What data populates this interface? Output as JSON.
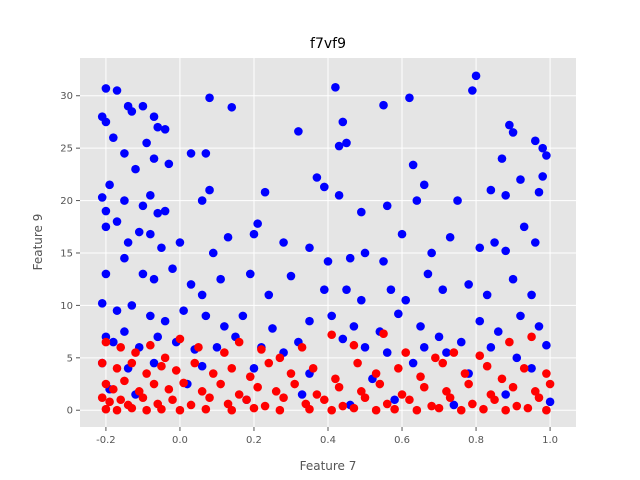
{
  "chart_data": {
    "type": "scatter",
    "title": "f7vf9",
    "xlabel": "Feature 7",
    "ylabel": "Feature 9",
    "xlim": [
      -0.27,
      1.07
    ],
    "ylim": [
      -1.6,
      33.6
    ],
    "x_ticks": [
      "-0.2",
      "0.0",
      "0.2",
      "0.4",
      "0.6",
      "0.8",
      "1.0"
    ],
    "y_ticks": [
      "0",
      "5",
      "10",
      "15",
      "20",
      "25",
      "30"
    ],
    "grid": true,
    "legend": "none",
    "colors": {
      "background": "#e5e5e5",
      "grid": "#ffffff",
      "blue_series": "#0000ff",
      "red_series": "#ff0000"
    },
    "series": [
      {
        "color": "#0000ff",
        "points": [
          [
            -0.2,
            30.7
          ],
          [
            -0.17,
            30.5
          ],
          [
            -0.21,
            28.0
          ],
          [
            -0.2,
            27.5
          ],
          [
            -0.18,
            26.0
          ],
          [
            -0.14,
            29.0
          ],
          [
            -0.13,
            28.5
          ],
          [
            -0.1,
            29.0
          ],
          [
            -0.07,
            28.0
          ],
          [
            -0.06,
            27.0
          ],
          [
            -0.04,
            26.8
          ],
          [
            0.08,
            29.8
          ],
          [
            0.14,
            28.9
          ],
          [
            0.42,
            30.8
          ],
          [
            0.55,
            29.1
          ],
          [
            0.62,
            29.8
          ],
          [
            0.79,
            30.5
          ],
          [
            0.8,
            31.9
          ],
          [
            0.89,
            27.2
          ],
          [
            0.9,
            26.5
          ],
          [
            -0.15,
            24.5
          ],
          [
            -0.12,
            23.0
          ],
          [
            -0.09,
            25.5
          ],
          [
            -0.07,
            24.0
          ],
          [
            -0.03,
            23.5
          ],
          [
            0.03,
            24.5
          ],
          [
            0.07,
            24.5
          ],
          [
            0.32,
            26.6
          ],
          [
            0.43,
            25.2
          ],
          [
            0.44,
            27.5
          ],
          [
            0.45,
            25.5
          ],
          [
            0.63,
            23.4
          ],
          [
            0.87,
            24.0
          ],
          [
            0.96,
            25.7
          ],
          [
            0.98,
            25.0
          ],
          [
            0.99,
            24.3
          ],
          [
            -0.21,
            20.3
          ],
          [
            -0.19,
            21.5
          ],
          [
            -0.2,
            19.0
          ],
          [
            -0.15,
            20.0
          ],
          [
            -0.1,
            19.5
          ],
          [
            -0.08,
            20.5
          ],
          [
            -0.06,
            18.8
          ],
          [
            -0.04,
            19.0
          ],
          [
            0.06,
            20.0
          ],
          [
            0.08,
            21.0
          ],
          [
            0.23,
            20.8
          ],
          [
            0.37,
            22.2
          ],
          [
            0.39,
            21.3
          ],
          [
            0.43,
            20.5
          ],
          [
            0.49,
            18.9
          ],
          [
            0.56,
            19.5
          ],
          [
            0.64,
            20.0
          ],
          [
            0.66,
            21.5
          ],
          [
            0.75,
            20.0
          ],
          [
            0.84,
            21.0
          ],
          [
            0.88,
            20.5
          ],
          [
            0.92,
            22.0
          ],
          [
            0.98,
            22.3
          ],
          [
            0.97,
            20.8
          ],
          [
            -0.2,
            17.5
          ],
          [
            -0.17,
            18.0
          ],
          [
            -0.14,
            16.0
          ],
          [
            -0.11,
            17.0
          ],
          [
            -0.08,
            16.8
          ],
          [
            -0.05,
            15.5
          ],
          [
            0.0,
            16.0
          ],
          [
            0.09,
            15.0
          ],
          [
            0.13,
            16.5
          ],
          [
            0.2,
            16.8
          ],
          [
            0.21,
            17.8
          ],
          [
            0.28,
            16.0
          ],
          [
            0.35,
            15.5
          ],
          [
            0.4,
            14.2
          ],
          [
            0.46,
            14.5
          ],
          [
            0.5,
            15.0
          ],
          [
            0.55,
            14.2
          ],
          [
            0.6,
            16.8
          ],
          [
            0.68,
            15.0
          ],
          [
            0.73,
            16.5
          ],
          [
            0.81,
            15.5
          ],
          [
            0.85,
            16.0
          ],
          [
            0.88,
            15.2
          ],
          [
            0.93,
            17.5
          ],
          [
            0.96,
            16.0
          ],
          [
            -0.2,
            13.0
          ],
          [
            -0.15,
            14.5
          ],
          [
            -0.1,
            13.0
          ],
          [
            -0.07,
            12.5
          ],
          [
            -0.02,
            13.5
          ],
          [
            0.03,
            12.0
          ],
          [
            0.06,
            11.0
          ],
          [
            0.11,
            12.5
          ],
          [
            0.19,
            13.0
          ],
          [
            0.24,
            11.0
          ],
          [
            0.3,
            12.8
          ],
          [
            0.39,
            11.5
          ],
          [
            0.45,
            11.5
          ],
          [
            0.49,
            10.5
          ],
          [
            0.57,
            11.5
          ],
          [
            0.61,
            10.5
          ],
          [
            0.67,
            13.0
          ],
          [
            0.71,
            11.5
          ],
          [
            0.78,
            12.0
          ],
          [
            0.83,
            11.0
          ],
          [
            0.9,
            12.5
          ],
          [
            0.95,
            11.0
          ],
          [
            -0.21,
            10.2
          ],
          [
            -0.17,
            9.5
          ],
          [
            -0.13,
            10.0
          ],
          [
            -0.08,
            9.0
          ],
          [
            -0.04,
            8.5
          ],
          [
            0.01,
            9.5
          ],
          [
            0.07,
            9.0
          ],
          [
            0.12,
            8.0
          ],
          [
            0.17,
            9.0
          ],
          [
            0.25,
            7.8
          ],
          [
            0.35,
            8.5
          ],
          [
            0.41,
            9.0
          ],
          [
            0.47,
            8.0
          ],
          [
            0.54,
            7.5
          ],
          [
            0.59,
            9.2
          ],
          [
            0.65,
            8.0
          ],
          [
            0.7,
            7.0
          ],
          [
            0.76,
            6.5
          ],
          [
            0.81,
            8.5
          ],
          [
            0.86,
            7.5
          ],
          [
            0.92,
            9.0
          ],
          [
            0.97,
            8.0
          ],
          [
            -0.2,
            7.0
          ],
          [
            -0.18,
            6.5
          ],
          [
            -0.15,
            7.5
          ],
          [
            -0.11,
            6.0
          ],
          [
            -0.06,
            7.0
          ],
          [
            -0.01,
            6.5
          ],
          [
            0.04,
            5.8
          ],
          [
            0.1,
            6.0
          ],
          [
            0.15,
            7.0
          ],
          [
            0.22,
            6.0
          ],
          [
            0.28,
            5.5
          ],
          [
            0.32,
            6.5
          ],
          [
            0.44,
            6.8
          ],
          [
            0.5,
            6.0
          ],
          [
            0.56,
            5.5
          ],
          [
            0.66,
            6.0
          ],
          [
            0.72,
            5.5
          ],
          [
            0.84,
            6.0
          ],
          [
            0.91,
            5.0
          ],
          [
            0.99,
            6.2
          ],
          [
            -0.21,
            4.5
          ],
          [
            -0.14,
            4.0
          ],
          [
            -0.07,
            4.5
          ],
          [
            0.06,
            4.2
          ],
          [
            0.2,
            4.0
          ],
          [
            0.35,
            3.5
          ],
          [
            0.52,
            3.0
          ],
          [
            0.63,
            4.5
          ],
          [
            0.78,
            3.5
          ],
          [
            0.95,
            4.0
          ],
          [
            -0.19,
            2.0
          ],
          [
            -0.12,
            1.5
          ],
          [
            0.02,
            2.5
          ],
          [
            0.18,
            1.0
          ],
          [
            0.33,
            1.5
          ],
          [
            0.46,
            0.5
          ],
          [
            0.58,
            1.0
          ],
          [
            0.74,
            0.5
          ],
          [
            0.88,
            1.5
          ],
          [
            1.0,
            0.8
          ]
        ]
      },
      {
        "color": "#ff0000",
        "points": [
          [
            -0.2,
            6.5
          ],
          [
            -0.16,
            6.0
          ],
          [
            -0.12,
            5.5
          ],
          [
            -0.08,
            6.2
          ],
          [
            -0.04,
            5.0
          ],
          [
            0.0,
            6.8
          ],
          [
            0.05,
            6.0
          ],
          [
            0.12,
            5.5
          ],
          [
            0.16,
            6.5
          ],
          [
            0.22,
            5.8
          ],
          [
            0.27,
            5.0
          ],
          [
            0.33,
            6.0
          ],
          [
            0.41,
            7.2
          ],
          [
            0.47,
            6.2
          ],
          [
            0.55,
            7.3
          ],
          [
            0.61,
            5.5
          ],
          [
            0.69,
            5.0
          ],
          [
            0.74,
            5.5
          ],
          [
            0.81,
            5.2
          ],
          [
            0.89,
            6.5
          ],
          [
            0.95,
            7.0
          ],
          [
            -0.21,
            4.5
          ],
          [
            -0.17,
            4.0
          ],
          [
            -0.13,
            4.5
          ],
          [
            -0.09,
            3.5
          ],
          [
            -0.05,
            4.2
          ],
          [
            -0.01,
            3.8
          ],
          [
            0.04,
            4.5
          ],
          [
            0.09,
            3.5
          ],
          [
            0.14,
            4.0
          ],
          [
            0.19,
            3.2
          ],
          [
            0.24,
            4.5
          ],
          [
            0.3,
            3.5
          ],
          [
            0.36,
            4.0
          ],
          [
            0.42,
            3.0
          ],
          [
            0.48,
            4.5
          ],
          [
            0.53,
            3.5
          ],
          [
            0.59,
            4.0
          ],
          [
            0.65,
            3.2
          ],
          [
            0.71,
            4.5
          ],
          [
            0.77,
            3.5
          ],
          [
            0.83,
            4.2
          ],
          [
            0.87,
            3.0
          ],
          [
            0.93,
            4.0
          ],
          [
            0.99,
            3.5
          ],
          [
            -0.2,
            2.5
          ],
          [
            -0.18,
            2.0
          ],
          [
            -0.15,
            2.8
          ],
          [
            -0.11,
            1.8
          ],
          [
            -0.07,
            2.5
          ],
          [
            -0.03,
            2.0
          ],
          [
            0.01,
            2.6
          ],
          [
            0.06,
            1.8
          ],
          [
            0.11,
            2.5
          ],
          [
            0.16,
            1.5
          ],
          [
            0.21,
            2.2
          ],
          [
            0.26,
            1.8
          ],
          [
            0.31,
            2.5
          ],
          [
            0.37,
            1.5
          ],
          [
            0.43,
            2.2
          ],
          [
            0.49,
            1.8
          ],
          [
            0.54,
            2.5
          ],
          [
            0.6,
            1.5
          ],
          [
            0.66,
            2.2
          ],
          [
            0.72,
            1.8
          ],
          [
            0.78,
            2.5
          ],
          [
            0.84,
            1.5
          ],
          [
            0.9,
            2.2
          ],
          [
            0.96,
            1.8
          ],
          [
            1.0,
            2.5
          ],
          [
            -0.21,
            1.2
          ],
          [
            -0.19,
            0.8
          ],
          [
            -0.16,
            1.0
          ],
          [
            -0.14,
            0.5
          ],
          [
            -0.1,
            1.2
          ],
          [
            -0.06,
            0.6
          ],
          [
            -0.02,
            1.0
          ],
          [
            0.03,
            0.5
          ],
          [
            0.08,
            1.2
          ],
          [
            0.13,
            0.6
          ],
          [
            0.18,
            1.0
          ],
          [
            0.23,
            0.4
          ],
          [
            0.28,
            1.2
          ],
          [
            0.34,
            0.6
          ],
          [
            0.39,
            1.0
          ],
          [
            0.44,
            0.4
          ],
          [
            0.5,
            1.2
          ],
          [
            0.56,
            0.6
          ],
          [
            0.62,
            1.0
          ],
          [
            0.68,
            0.4
          ],
          [
            0.73,
            1.2
          ],
          [
            0.79,
            0.6
          ],
          [
            0.85,
            1.0
          ],
          [
            0.91,
            0.4
          ],
          [
            0.97,
            1.2
          ],
          [
            -0.2,
            0.1
          ],
          [
            -0.17,
            0.0
          ],
          [
            -0.13,
            0.2
          ],
          [
            -0.09,
            0.0
          ],
          [
            -0.05,
            0.1
          ],
          [
            0.0,
            0.0
          ],
          [
            0.07,
            0.1
          ],
          [
            0.14,
            0.0
          ],
          [
            0.2,
            0.2
          ],
          [
            0.27,
            0.0
          ],
          [
            0.35,
            0.1
          ],
          [
            0.41,
            0.0
          ],
          [
            0.47,
            0.2
          ],
          [
            0.53,
            0.0
          ],
          [
            0.58,
            0.1
          ],
          [
            0.64,
            0.0
          ],
          [
            0.7,
            0.2
          ],
          [
            0.76,
            0.0
          ],
          [
            0.82,
            0.1
          ],
          [
            0.88,
            0.0
          ],
          [
            0.94,
            0.2
          ],
          [
            0.99,
            0.0
          ]
        ]
      }
    ]
  }
}
